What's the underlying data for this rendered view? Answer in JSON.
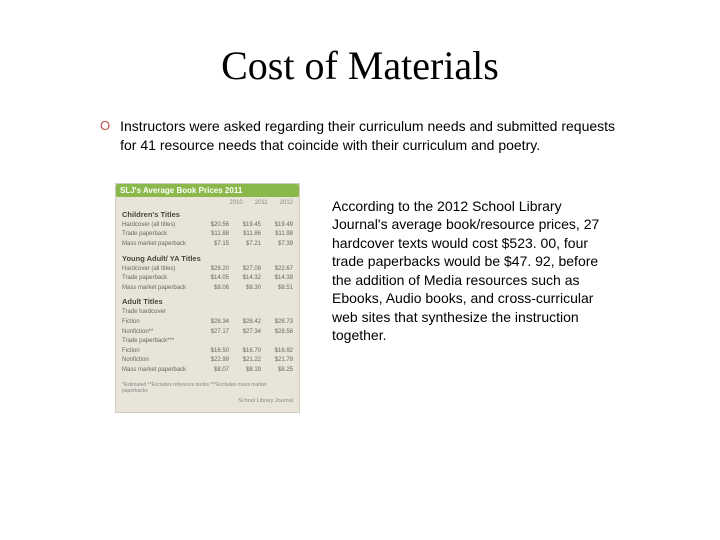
{
  "title": "Cost of Materials",
  "bullet_marker": "O",
  "bullet_text": "Instructors were asked regarding their curriculum needs and submitted requests for 41 resource needs that coincide with their curriculum and poetry.",
  "paragraph": "According to the 2012 School Library Journal's average book/resource prices, 27 hardcover texts would cost $523. 00, four trade paperbacks would be $47. 92, before the addition of Media resources such as Ebooks, Audio books, and cross-curricular web sites that synthesize the instruction together.",
  "table": {
    "header": "SLJ's Average Book Prices 2011",
    "year_columns": [
      "2010",
      "2011",
      "2012"
    ],
    "sections": [
      {
        "title": "Children's Titles",
        "rows": [
          {
            "label": "Hardcover (all titles)",
            "values": [
              "$20.56",
              "$19.45",
              "$19.49"
            ]
          },
          {
            "label": "Trade paperback",
            "values": [
              "$11.88",
              "$11.86",
              "$11.98"
            ]
          },
          {
            "label": "Mass market paperback",
            "values": [
              "$7.15",
              "$7.21",
              "$7.39"
            ]
          }
        ]
      },
      {
        "title": "Young Adult/ YA Titles",
        "rows": [
          {
            "label": "Hardcover (all titles)",
            "values": [
              "$28.20",
              "$27.09",
              "$22.67"
            ]
          },
          {
            "label": "Trade paperback",
            "values": [
              "$14.05",
              "$14.32",
              "$14.39"
            ]
          },
          {
            "label": "Mass market paperback",
            "values": [
              "$8.06",
              "$8.30",
              "$8.51"
            ]
          }
        ]
      },
      {
        "title": "Adult Titles",
        "rows": [
          {
            "label": "Trade hardcover",
            "values": [
              "",
              "",
              ""
            ]
          },
          {
            "label": "Fiction",
            "values": [
              "$28.34",
              "$28.42",
              "$28.73"
            ]
          },
          {
            "label": "Nonfiction**",
            "values": [
              "$27.17",
              "$27.34",
              "$28.58"
            ]
          },
          {
            "label": "Trade paperback***",
            "values": [
              "",
              "",
              ""
            ]
          },
          {
            "label": "Fiction",
            "values": [
              "$16.50",
              "$16.70",
              "$16.92"
            ]
          },
          {
            "label": "Nonfiction",
            "values": [
              "$22.99",
              "$21.22",
              "$21.79"
            ]
          },
          {
            "label": "Mass market paperback",
            "values": [
              "$8.07",
              "$8.19",
              "$8.25"
            ]
          }
        ]
      }
    ],
    "footnote": "*Estimated **Excludes reference books ***Excludes mass market paperbacks",
    "source": "School Library Journal"
  },
  "colors": {
    "bullet": "#c0504d",
    "table_bg": "#e8e4d8",
    "table_header_bg": "#8bb84a",
    "text": "#000000"
  }
}
